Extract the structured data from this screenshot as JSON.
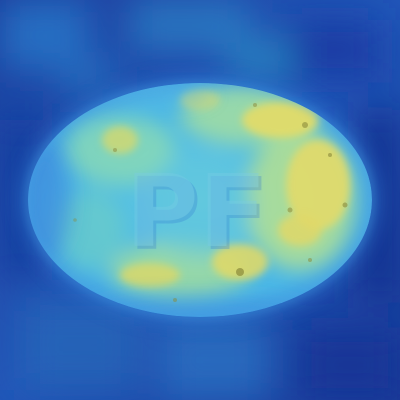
{
  "image": {
    "subject": "heatmap-overlay-on-tablet",
    "imprint": "PF",
    "colormap": [
      "#1a2e9a",
      "#1f4fc0",
      "#2a86d6",
      "#3fb8d8",
      "#6fd6c4",
      "#a8e29a",
      "#e3dc6a"
    ]
  }
}
